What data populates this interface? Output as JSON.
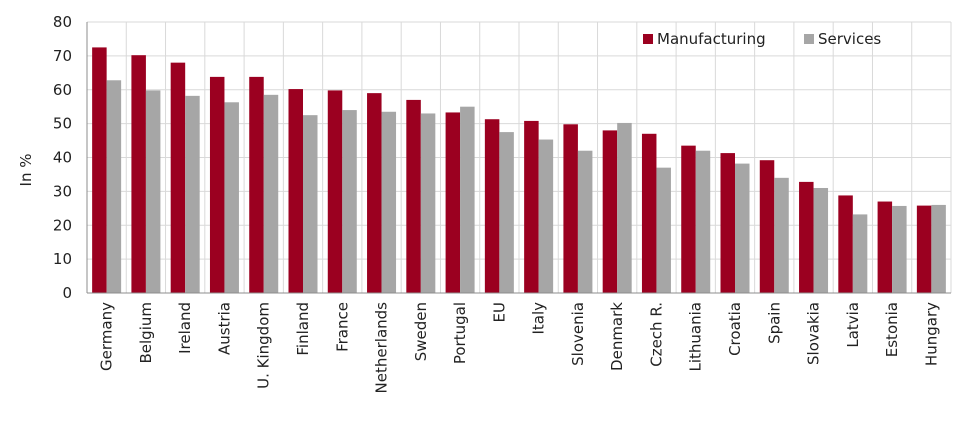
{
  "chart_data": {
    "type": "bar",
    "title": "",
    "xlabel": "",
    "ylabel": "In %",
    "ylim": [
      0,
      80
    ],
    "yticks": [
      0,
      10,
      20,
      30,
      40,
      50,
      60,
      70,
      80
    ],
    "grid": true,
    "legend_position": "top-right",
    "categories": [
      "Germany",
      "Belgium",
      "Ireland",
      "Austria",
      "U. Kingdom",
      "Finland",
      "France",
      "Netherlands",
      "Sweden",
      "Portugal",
      "EU",
      "Italy",
      "Slovenia",
      "Denmark",
      "Czech R.",
      "Lithuania",
      "Croatia",
      "Spain",
      "Slovakia",
      "Latvia",
      "Estonia",
      "Hungary"
    ],
    "series": [
      {
        "name": "Manufacturing",
        "color": "#9b0020",
        "values": [
          72.5,
          70.2,
          68.0,
          63.8,
          63.8,
          60.2,
          59.8,
          59.0,
          57.0,
          53.3,
          51.3,
          50.8,
          49.8,
          48.0,
          47.0,
          43.5,
          41.3,
          39.2,
          32.8,
          28.8,
          27.0,
          25.8
        ]
      },
      {
        "name": "Services",
        "color": "#a6a6a6",
        "values": [
          62.8,
          59.8,
          58.2,
          56.3,
          58.5,
          52.5,
          54.0,
          53.5,
          53.0,
          55.0,
          47.5,
          45.3,
          42.0,
          50.2,
          37.0,
          42.0,
          38.2,
          34.0,
          31.0,
          23.2,
          25.7,
          26.0
        ]
      }
    ]
  }
}
